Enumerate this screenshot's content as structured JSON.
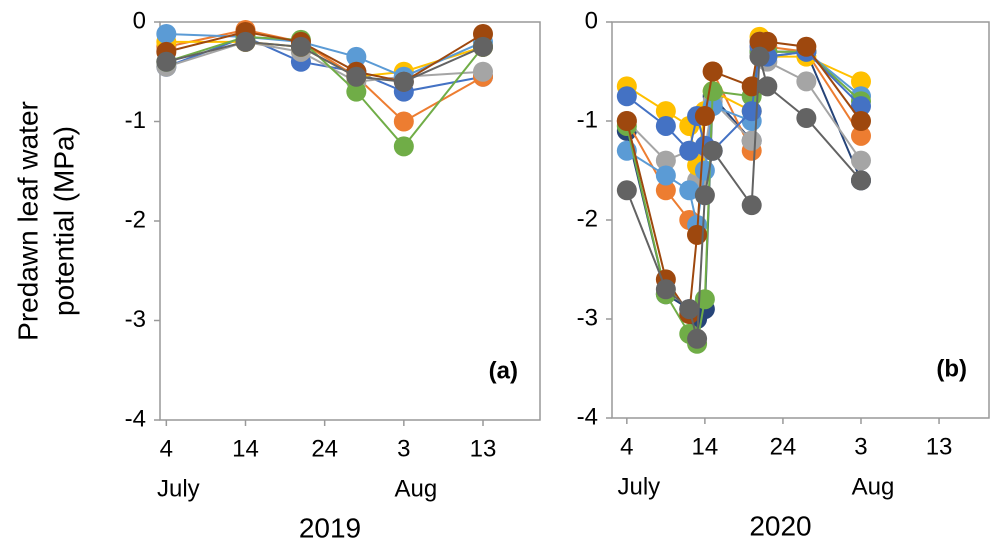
{
  "chart_data": [
    {
      "type": "line",
      "annotation": "(a)",
      "xlabel": "2019",
      "ylabel": [
        "Predawn leaf water",
        "potential (MPa)"
      ],
      "x": [
        4,
        14,
        21,
        28,
        34,
        44
      ],
      "xlim": [
        3.2,
        51.2
      ],
      "xticks": [
        4,
        14,
        24,
        {
          "value": 34,
          "label": "3"
        },
        {
          "value": 44,
          "label": "13"
        }
      ],
      "month_labels": [
        {
          "value": 4,
          "label": "July"
        },
        {
          "value": 34,
          "label": "Aug"
        }
      ],
      "ylim": [
        -4,
        0
      ],
      "yticks": [
        0,
        -1,
        -2,
        -3,
        -4
      ],
      "grid": false,
      "series": [
        {
          "color": "#4472c4",
          "values": [
            -0.45,
            -0.15,
            -0.4,
            -0.5,
            -0.7,
            -0.55
          ]
        },
        {
          "color": "#ed7d31",
          "values": [
            -0.25,
            -0.08,
            -0.2,
            -0.55,
            -1.0,
            -0.55
          ]
        },
        {
          "color": "#a5a5a5",
          "values": [
            -0.45,
            -0.2,
            -0.3,
            -0.6,
            -0.55,
            -0.5
          ]
        },
        {
          "color": "#ffc000",
          "values": [
            -0.2,
            -0.2,
            -0.25,
            -0.55,
            -0.5,
            -0.25
          ]
        },
        {
          "color": "#5b9bd5",
          "values": [
            -0.12,
            -0.15,
            -0.2,
            -0.35,
            -0.55,
            -0.2
          ]
        },
        {
          "color": "#70ad47",
          "values": [
            -0.4,
            -0.15,
            -0.18,
            -0.7,
            -1.25,
            -0.25
          ]
        },
        {
          "color": "#9e480e",
          "values": [
            -0.3,
            -0.1,
            -0.2,
            -0.5,
            -0.6,
            -0.12
          ]
        },
        {
          "color": "#636363",
          "values": [
            -0.4,
            -0.2,
            -0.25,
            -0.55,
            -0.6,
            -0.25
          ]
        }
      ]
    },
    {
      "type": "line",
      "annotation": "(b)",
      "xlabel": "2020",
      "x": [
        4,
        9,
        12,
        13,
        14,
        15,
        20,
        21,
        22,
        27,
        34
      ],
      "xlim": [
        2.1,
        50.4
      ],
      "xticks": [
        4,
        14,
        24,
        {
          "value": 34,
          "label": "3"
        },
        {
          "value": 44,
          "label": "13"
        }
      ],
      "month_labels": [
        {
          "value": 4,
          "label": "July"
        },
        {
          "value": 34,
          "label": "Aug"
        }
      ],
      "ylim": [
        -4,
        0
      ],
      "yticks": [
        0,
        -1,
        -2,
        -3,
        -4
      ],
      "grid": false,
      "series": [
        {
          "color": "#264478",
          "values": [
            -1.1,
            -2.75,
            -2.9,
            -3.0,
            -2.9,
            -0.75,
            -1.2,
            -0.3,
            -0.3,
            -0.3,
            -1.6
          ]
        },
        {
          "color": "#ed7d31",
          "values": [
            -1.0,
            -1.7,
            -2.0,
            -2.15,
            -0.9,
            -0.5,
            -1.3,
            -0.25,
            -0.25,
            -0.3,
            -1.15
          ]
        },
        {
          "color": "#a5a5a5",
          "values": [
            -1.0,
            -1.4,
            -1.3,
            -1.6,
            -1.3,
            -0.8,
            -1.2,
            -0.35,
            -0.4,
            -0.6,
            -1.4
          ]
        },
        {
          "color": "#ffc000",
          "values": [
            -0.65,
            -0.9,
            -1.05,
            -1.45,
            -0.9,
            -0.7,
            -0.9,
            -0.15,
            -0.35,
            -0.35,
            -0.6
          ]
        },
        {
          "color": "#5b9bd5",
          "values": [
            -1.3,
            -1.55,
            -1.7,
            -2.05,
            -1.5,
            -0.85,
            -1.0,
            -0.2,
            -0.35,
            -0.3,
            -0.75
          ]
        },
        {
          "color": "#70ad47",
          "values": [
            -1.05,
            -2.75,
            -3.15,
            -3.25,
            -2.8,
            -0.7,
            -0.75,
            -0.3,
            -0.3,
            -0.3,
            -0.8
          ]
        },
        {
          "color": "#4472c4",
          "values": [
            -0.75,
            -1.05,
            -1.3,
            -0.95,
            -1.25,
            -1.3,
            -0.9,
            -0.25,
            -0.35,
            -0.3,
            -0.85
          ]
        },
        {
          "color": "#9e480e",
          "values": [
            -1.0,
            -2.6,
            -2.95,
            -2.15,
            -0.95,
            -0.5,
            -0.65,
            -0.2,
            -0.2,
            -0.25,
            -1.0
          ]
        },
        {
          "color": "#636363",
          "values": [
            -1.7,
            -2.7,
            -2.9,
            -3.2,
            -1.75,
            -1.3,
            -1.85,
            -0.35,
            -0.65,
            -0.97,
            -1.6
          ]
        }
      ]
    }
  ]
}
